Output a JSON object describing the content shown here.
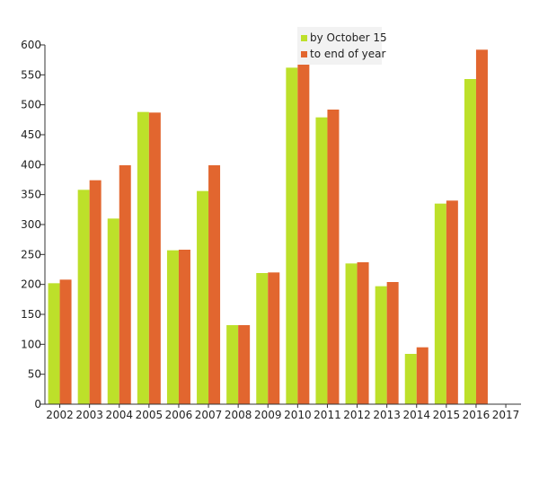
{
  "chart_data": {
    "type": "bar",
    "categories": [
      "2002",
      "2003",
      "2004",
      "2005",
      "2006",
      "2007",
      "2008",
      "2009",
      "2010",
      "2011",
      "2012",
      "2013",
      "2014",
      "2015",
      "2016",
      "2017"
    ],
    "series": [
      {
        "name": "by October 15",
        "color": "#bde02a",
        "values": [
          202,
          358,
          310,
          488,
          257,
          356,
          132,
          219,
          562,
          479,
          235,
          197,
          84,
          335,
          543,
          0
        ]
      },
      {
        "name": "to end of year",
        "color": "#e2662f",
        "values": [
          208,
          374,
          399,
          487,
          258,
          399,
          132,
          220,
          576,
          492,
          237,
          204,
          95,
          340,
          592,
          0
        ]
      }
    ],
    "yticks": [
      "0",
      "50",
      "100",
      "150",
      "200",
      "250",
      "300",
      "350",
      "400",
      "450",
      "500",
      "550",
      "600"
    ],
    "ylim": [
      0,
      600
    ],
    "grid": false,
    "legend_position": "top"
  }
}
